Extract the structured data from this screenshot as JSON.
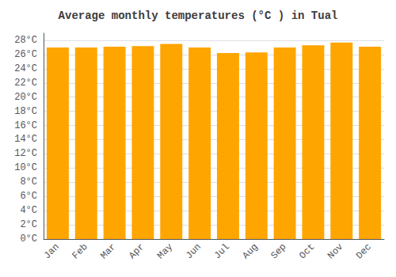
{
  "chart_data": {
    "type": "bar",
    "title": "Average monthly temperatures (°C ) in Tual",
    "categories": [
      "Jan",
      "Feb",
      "Mar",
      "Apr",
      "May",
      "Jun",
      "Jul",
      "Aug",
      "Sep",
      "Oct",
      "Nov",
      "Dec"
    ],
    "values": [
      27.0,
      27.0,
      27.1,
      27.2,
      27.5,
      27.0,
      26.2,
      26.3,
      27.0,
      27.3,
      27.7,
      27.1
    ],
    "color": "#FFA500",
    "ylim": [
      0,
      29
    ],
    "yticks": [
      {
        "value": 0,
        "label": "0°C"
      },
      {
        "value": 2,
        "label": "2°C"
      },
      {
        "value": 4,
        "label": "4°C"
      },
      {
        "value": 6,
        "label": "6°C"
      },
      {
        "value": 8,
        "label": "8°C"
      },
      {
        "value": 10,
        "label": "10°C"
      },
      {
        "value": 12,
        "label": "12°C"
      },
      {
        "value": 14,
        "label": "14°C"
      },
      {
        "value": 16,
        "label": "16°C"
      },
      {
        "value": 18,
        "label": "18°C"
      },
      {
        "value": 20,
        "label": "20°C"
      },
      {
        "value": 22,
        "label": "22°C"
      },
      {
        "value": 24,
        "label": "24°C"
      },
      {
        "value": 26,
        "label": "26°C"
      },
      {
        "value": 28,
        "label": "28°C"
      }
    ],
    "grid": true
  }
}
